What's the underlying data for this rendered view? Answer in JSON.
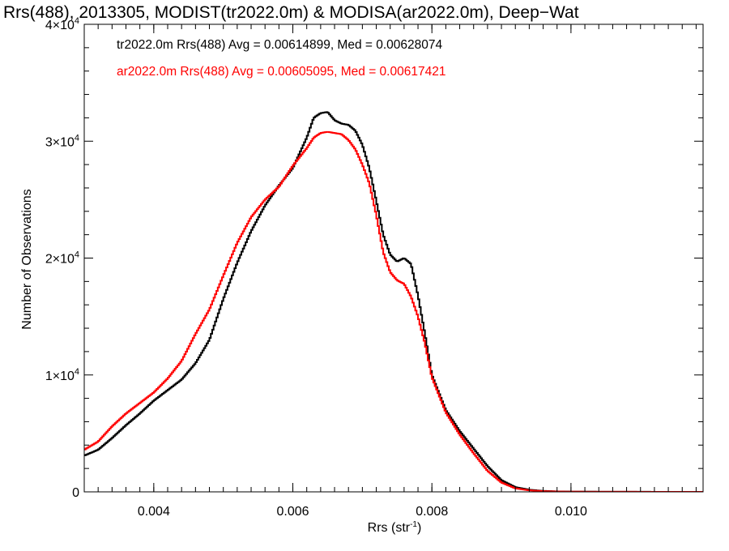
{
  "chart_data": {
    "type": "line",
    "title": "Rrs(488), 2013305, MODIST(tr2022.0m) & MODISA(ar2022.0m), Deep−Wat",
    "xlabel": "Rrs (str",
    "xlabel_sup": "-1",
    "xlabel_close": ")",
    "ylabel": "Number of Observations",
    "xlim": [
      0.003,
      0.0119
    ],
    "ylim": [
      0,
      40000
    ],
    "x_ticks": [
      {
        "value": 0.004,
        "label": "0.004"
      },
      {
        "value": 0.006,
        "label": "0.006"
      },
      {
        "value": 0.008,
        "label": "0.008"
      },
      {
        "value": 0.01,
        "label": "0.010"
      }
    ],
    "y_ticks": [
      {
        "value": 0,
        "mant": "0",
        "exp": ""
      },
      {
        "value": 10000,
        "mant": "1×10",
        "exp": "4"
      },
      {
        "value": 20000,
        "mant": "2×10",
        "exp": "4"
      },
      {
        "value": 30000,
        "mant": "3×10",
        "exp": "4"
      },
      {
        "value": 40000,
        "mant": "4×10",
        "exp": "4"
      }
    ],
    "annotations": [
      {
        "text": "tr2022.0m Rrs(488) Avg = 0.00614899, Med = 0.00628074",
        "color": "#000000"
      },
      {
        "text": "ar2022.0m Rrs(488) Avg = 0.00605095, Med = 0.00617421",
        "color": "#ff0000"
      }
    ],
    "series": [
      {
        "color": "#000000",
        "points": [
          [
            0.003,
            3100
          ],
          [
            0.0032,
            3600
          ],
          [
            0.0034,
            4600
          ],
          [
            0.0036,
            5700
          ],
          [
            0.0038,
            6700
          ],
          [
            0.004,
            7800
          ],
          [
            0.0042,
            8700
          ],
          [
            0.0044,
            9600
          ],
          [
            0.0046,
            11000
          ],
          [
            0.0048,
            13000
          ],
          [
            0.005,
            16500
          ],
          [
            0.0052,
            19600
          ],
          [
            0.0054,
            22300
          ],
          [
            0.0056,
            24500
          ],
          [
            0.0058,
            26200
          ],
          [
            0.006,
            27700
          ],
          [
            0.0062,
            30300
          ],
          [
            0.0063,
            32000
          ],
          [
            0.0064,
            32400
          ],
          [
            0.0065,
            32500
          ],
          [
            0.0066,
            31800
          ],
          [
            0.0067,
            31500
          ],
          [
            0.0068,
            31400
          ],
          [
            0.0069,
            30900
          ],
          [
            0.007,
            29700
          ],
          [
            0.0071,
            27700
          ],
          [
            0.0072,
            24900
          ],
          [
            0.0073,
            22000
          ],
          [
            0.0074,
            20300
          ],
          [
            0.0075,
            19700
          ],
          [
            0.0076,
            20000
          ],
          [
            0.0077,
            19500
          ],
          [
            0.0078,
            16800
          ],
          [
            0.0079,
            13500
          ],
          [
            0.008,
            10000
          ],
          [
            0.0082,
            7000
          ],
          [
            0.0084,
            5200
          ],
          [
            0.0086,
            3700
          ],
          [
            0.0088,
            2200
          ],
          [
            0.009,
            1000
          ],
          [
            0.0092,
            400
          ],
          [
            0.0094,
            180
          ],
          [
            0.0096,
            80
          ],
          [
            0.0098,
            40
          ],
          [
            0.01,
            20
          ],
          [
            0.0105,
            10
          ],
          [
            0.011,
            5
          ],
          [
            0.0119,
            2
          ]
        ]
      },
      {
        "color": "#ff0000",
        "points": [
          [
            0.003,
            3600
          ],
          [
            0.0032,
            4300
          ],
          [
            0.0034,
            5600
          ],
          [
            0.0036,
            6700
          ],
          [
            0.0038,
            7600
          ],
          [
            0.004,
            8500
          ],
          [
            0.0042,
            9700
          ],
          [
            0.0044,
            11200
          ],
          [
            0.0046,
            13500
          ],
          [
            0.0048,
            15600
          ],
          [
            0.005,
            18500
          ],
          [
            0.0052,
            21300
          ],
          [
            0.0054,
            23500
          ],
          [
            0.0056,
            25000
          ],
          [
            0.0058,
            26100
          ],
          [
            0.006,
            27900
          ],
          [
            0.0062,
            29400
          ],
          [
            0.0063,
            30300
          ],
          [
            0.0064,
            30700
          ],
          [
            0.0065,
            30800
          ],
          [
            0.0066,
            30700
          ],
          [
            0.0067,
            30600
          ],
          [
            0.0068,
            30100
          ],
          [
            0.0069,
            29300
          ],
          [
            0.007,
            28000
          ],
          [
            0.0071,
            26400
          ],
          [
            0.0072,
            23700
          ],
          [
            0.0073,
            20500
          ],
          [
            0.0074,
            18800
          ],
          [
            0.0075,
            18100
          ],
          [
            0.0076,
            17800
          ],
          [
            0.0077,
            16700
          ],
          [
            0.0078,
            15000
          ],
          [
            0.0079,
            12700
          ],
          [
            0.008,
            9800
          ],
          [
            0.0082,
            6800
          ],
          [
            0.0084,
            4900
          ],
          [
            0.0086,
            3300
          ],
          [
            0.0088,
            1800
          ],
          [
            0.009,
            800
          ],
          [
            0.0092,
            300
          ],
          [
            0.0094,
            130
          ],
          [
            0.0096,
            60
          ],
          [
            0.0098,
            30
          ],
          [
            0.01,
            15
          ],
          [
            0.0105,
            8
          ],
          [
            0.011,
            4
          ],
          [
            0.0119,
            2
          ]
        ]
      }
    ]
  }
}
